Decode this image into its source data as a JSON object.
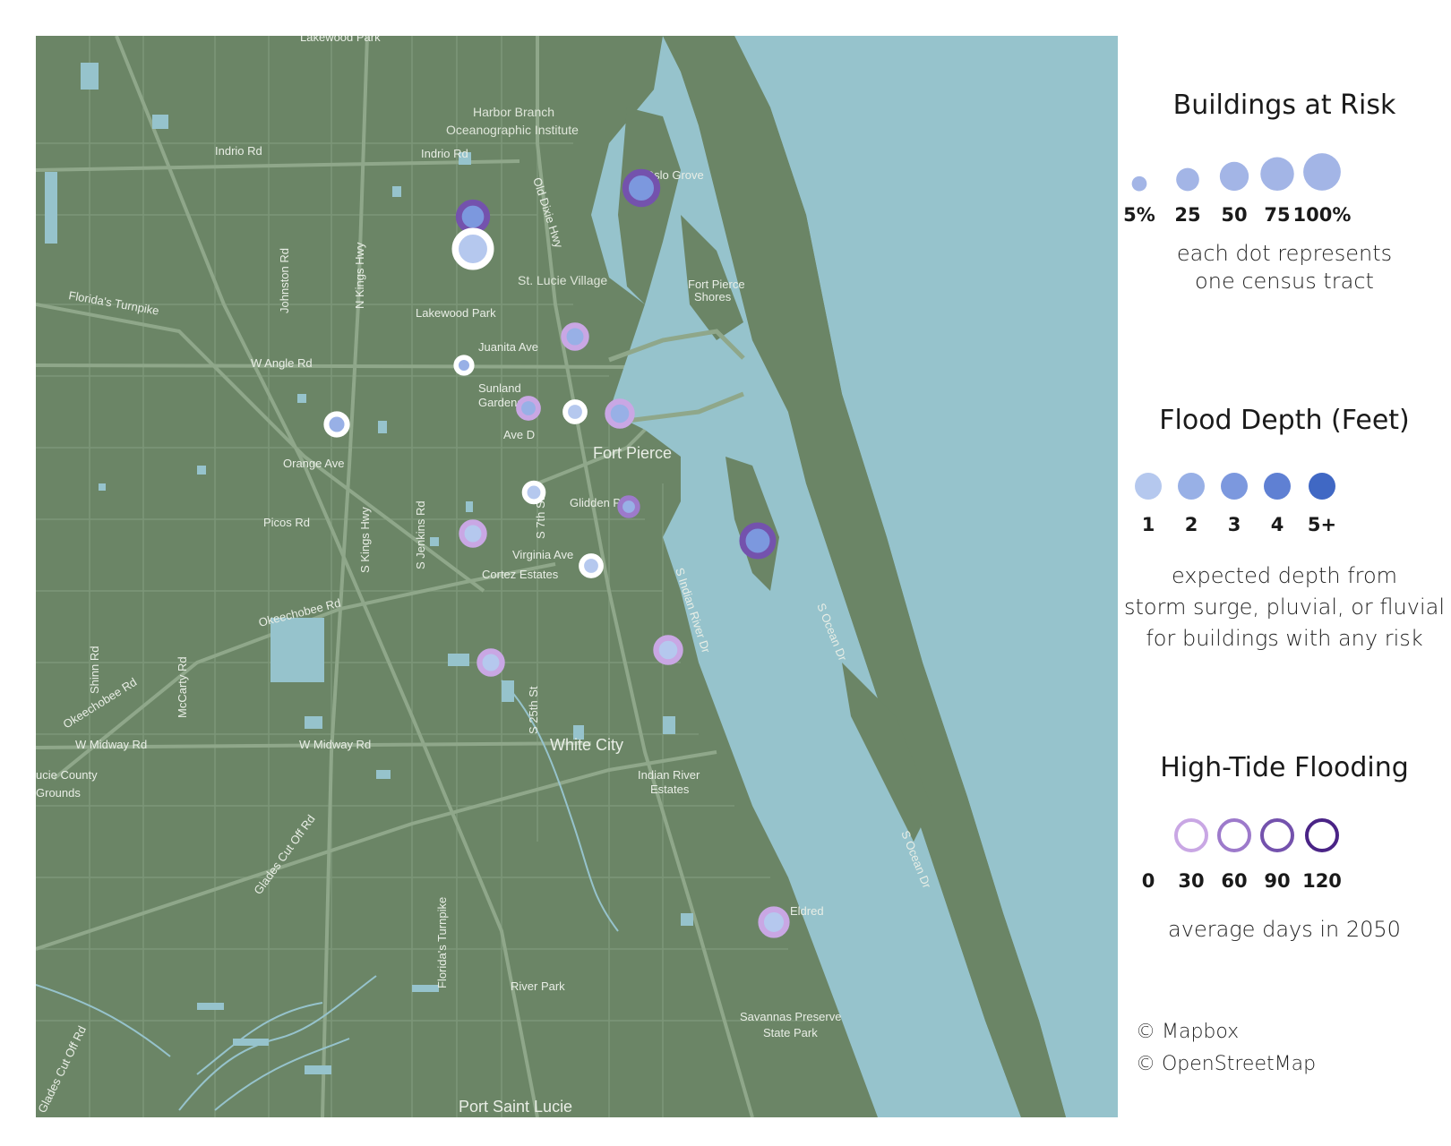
{
  "colors": {
    "land": "#6b8566",
    "water": "#96c3cc",
    "road": "#8aa285",
    "road_major": "#9ab295",
    "size_fill": "#a3b5e6",
    "depth": [
      "#b5c8ee",
      "#98b0e6",
      "#7c98de",
      "#5f80d3",
      "#4068c4"
    ],
    "tide": [
      "#ffffff",
      "#c9a7e4",
      "#9d7acb",
      "#7452ad",
      "#4a2486"
    ]
  },
  "map": {
    "place_labels": {
      "lakewood_park_top": "Lakewood Park",
      "harbor_branch": "Harbor Branch",
      "oceanographic": "Oceanographic Institute",
      "indrio_rd_left": "Indrio Rd",
      "indrio_rd_right": "Indrio Rd",
      "old_dixie": "Old Dixie Hwy",
      "johnston": "Johnston Rd",
      "n_kings": "N Kings Hwy",
      "st_lucie_village": "St. Lucie Village",
      "fort_pierce_shores_1": "Fort Pierce",
      "fort_pierce_shores_2": "Shores",
      "lakewood_park": "Lakewood Park",
      "florida_turnpike": "Florida's Turnpike",
      "juanita": "Juanita Ave",
      "w_angle": "W Angle Rd",
      "sunland_1": "Sunland",
      "sunland_2": "Gardens",
      "ave_d": "Ave D",
      "fort_pierce": "Fort Pierce",
      "orange_ave": "Orange Ave",
      "glidden": "Glidden Park",
      "picos": "Picos Rd",
      "s_kings": "S Kings Hwy",
      "s_jenkins": "S Jenkins Rd",
      "s_st": "S 7th St",
      "virginia": "Virginia Ave",
      "cortez": "Cortez Estates",
      "okeechobee_rd": "Okeechobee Rd",
      "s_indian_river": "S Indian River Dr",
      "s_ocean_dr_1": "S Ocean Dr",
      "shinn": "Shinn Rd",
      "mccarty": "McCarty Rd",
      "okeechobee_rd_2": "Okeechobee Rd",
      "w_midway_1": "W Midway Rd",
      "w_midway_2": "W Midway Rd",
      "s_25th": "S 25th St",
      "white_city": "White City",
      "indian_river_estates_1": "Indian River",
      "indian_river_estates_2": "Estates",
      "county_1": "ucie County",
      "county_2": "Grounds",
      "glades_cut_off": "Glades Cut Off Rd",
      "s_ocean_dr_2": "S Ocean Dr",
      "florida_s_turnpike": "Florida's Turnpike",
      "eldred": "Eldred",
      "river_park": "River Park",
      "savannas_1": "Savannas Preserve",
      "savannas_2": "State Park",
      "glades_cut_off_2": "Glades Cut Off Rd",
      "port_saint_lucie": "Port Saint Lucie",
      "oslo_grove": "Oslo Grove"
    },
    "tracts": [
      {
        "buildings_pct": 40,
        "depth_ft": 3,
        "tide_days": 90
      },
      {
        "buildings_pct": 55,
        "depth_ft": 3,
        "tide_days": 90
      },
      {
        "buildings_pct": 75,
        "depth_ft": 1,
        "tide_days": 0
      },
      {
        "buildings_pct": 20,
        "depth_ft": 2,
        "tide_days": 30
      },
      {
        "buildings_pct": 5,
        "depth_ft": 2,
        "tide_days": 0
      },
      {
        "buildings_pct": 15,
        "depth_ft": 2,
        "tide_days": 0
      },
      {
        "buildings_pct": 12,
        "depth_ft": 2,
        "tide_days": 30
      },
      {
        "buildings_pct": 25,
        "depth_ft": 2,
        "tide_days": 30
      },
      {
        "buildings_pct": 12,
        "depth_ft": 1,
        "tide_days": 0
      },
      {
        "buildings_pct": 10,
        "depth_ft": 1,
        "tide_days": 0
      },
      {
        "buildings_pct": 8,
        "depth_ft": 2,
        "tide_days": 60
      },
      {
        "buildings_pct": 20,
        "depth_ft": 1,
        "tide_days": 30
      },
      {
        "buildings_pct": 12,
        "depth_ft": 1,
        "tide_days": 0
      },
      {
        "buildings_pct": 50,
        "depth_ft": 3,
        "tide_days": 90
      },
      {
        "buildings_pct": 25,
        "depth_ft": 1,
        "tide_days": 30
      },
      {
        "buildings_pct": 20,
        "depth_ft": 1,
        "tide_days": 30
      },
      {
        "buildings_pct": 30,
        "depth_ft": 1,
        "tide_days": 30
      }
    ]
  },
  "legend": {
    "buildings": {
      "title": "Buildings at Risk",
      "labels": [
        "5%",
        "25",
        "50",
        "75",
        "100%"
      ],
      "caption_1": "each dot represents",
      "caption_2": "one census tract"
    },
    "depth": {
      "title": "Flood Depth (Feet)",
      "labels": [
        "1",
        "2",
        "3",
        "4",
        "5+"
      ],
      "caption_1": "expected depth from",
      "caption_2": "storm surge, pluvial, or fluvial",
      "caption_3": "for buildings with any risk"
    },
    "tide": {
      "title": "High-Tide Flooding",
      "labels": [
        "0",
        "30",
        "60",
        "90",
        "120"
      ],
      "caption": "average days in 2050"
    }
  },
  "attribution": {
    "mapbox": "© Mapbox",
    "osm": "© OpenStreetMap"
  }
}
